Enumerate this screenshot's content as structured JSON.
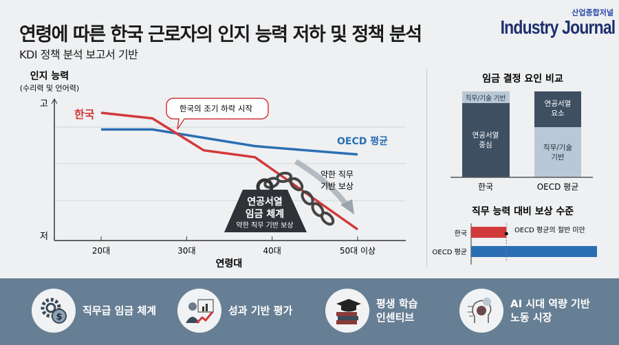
{
  "header": {
    "title": "연령에 따른 한국 근로자의 인지 능력 저하 및 정책 분석",
    "subtitle": "KDI 정책 분석 보고서 기반",
    "brand_ko": "산업종합저널",
    "brand": "Industry Journal"
  },
  "chart_data": [
    {
      "type": "line",
      "ylabel": "인지 능력",
      "ylabel_sub": "(수리력 및 언어력)",
      "y_high": "고",
      "y_low": "저",
      "xlabel": "연령대",
      "x_ticks": [
        "20대",
        "30대",
        "40대",
        "50대 이상"
      ],
      "ylim": [
        0,
        10
      ],
      "grid": true,
      "series": [
        {
          "name": "한국",
          "color": "#d2393b",
          "x": [
            20,
            26,
            32,
            38,
            50
          ],
          "y": [
            9.2,
            8.8,
            6.5,
            6.0,
            0.8
          ]
        },
        {
          "name": "OECD 평균",
          "color": "#2a6fb3",
          "x": [
            20,
            26,
            38,
            50
          ],
          "y": [
            8.0,
            8.0,
            6.8,
            6.2
          ]
        }
      ],
      "annotations": {
        "callout": "한국의 조기 하락 시작",
        "weight_title1": "연공서열",
        "weight_title2": "임금 체계",
        "weight_sub": "약한 직무 기반 보상",
        "arrow_label1": "약한 직무",
        "arrow_label2": "기반 보상"
      }
    },
    {
      "type": "bar",
      "stacked": true,
      "title": "임금 결정 요인 비교",
      "categories": [
        "한국",
        "OECD 평균"
      ],
      "series": [
        {
          "name": "연공서열",
          "values": [
            85,
            40
          ],
          "labels": [
            "연공서열\n중심",
            "연공서열\n요소"
          ],
          "color": "#3e4f62"
        },
        {
          "name": "직무/기술 기반",
          "values": [
            15,
            60
          ],
          "labels": [
            "직무/기술 기반",
            "직무/기술\n기반"
          ],
          "color": "#b9c8d6"
        }
      ]
    },
    {
      "type": "bar",
      "orientation": "horizontal",
      "title": "직무 능력 대비 보상 수준",
      "categories": [
        "한국",
        "OECD 평균"
      ],
      "values": [
        0.28,
        1.0
      ],
      "colors": [
        "#d2393b",
        "#2a6fb3"
      ],
      "annotation": "OECD 평균의 절반 미만"
    }
  ],
  "features": [
    {
      "label1": "직무급 임금 체계",
      "label2": "",
      "icon": "gear-dollar-icon"
    },
    {
      "label1": "성과 기반 평가",
      "label2": "",
      "icon": "performance-chart-icon"
    },
    {
      "label1": "평생 학습",
      "label2": "인센티브",
      "icon": "graduation-books-icon"
    },
    {
      "label1": "AI 시대 역량 기반",
      "label2": "노동 시장",
      "icon": "ai-brain-icon"
    }
  ]
}
